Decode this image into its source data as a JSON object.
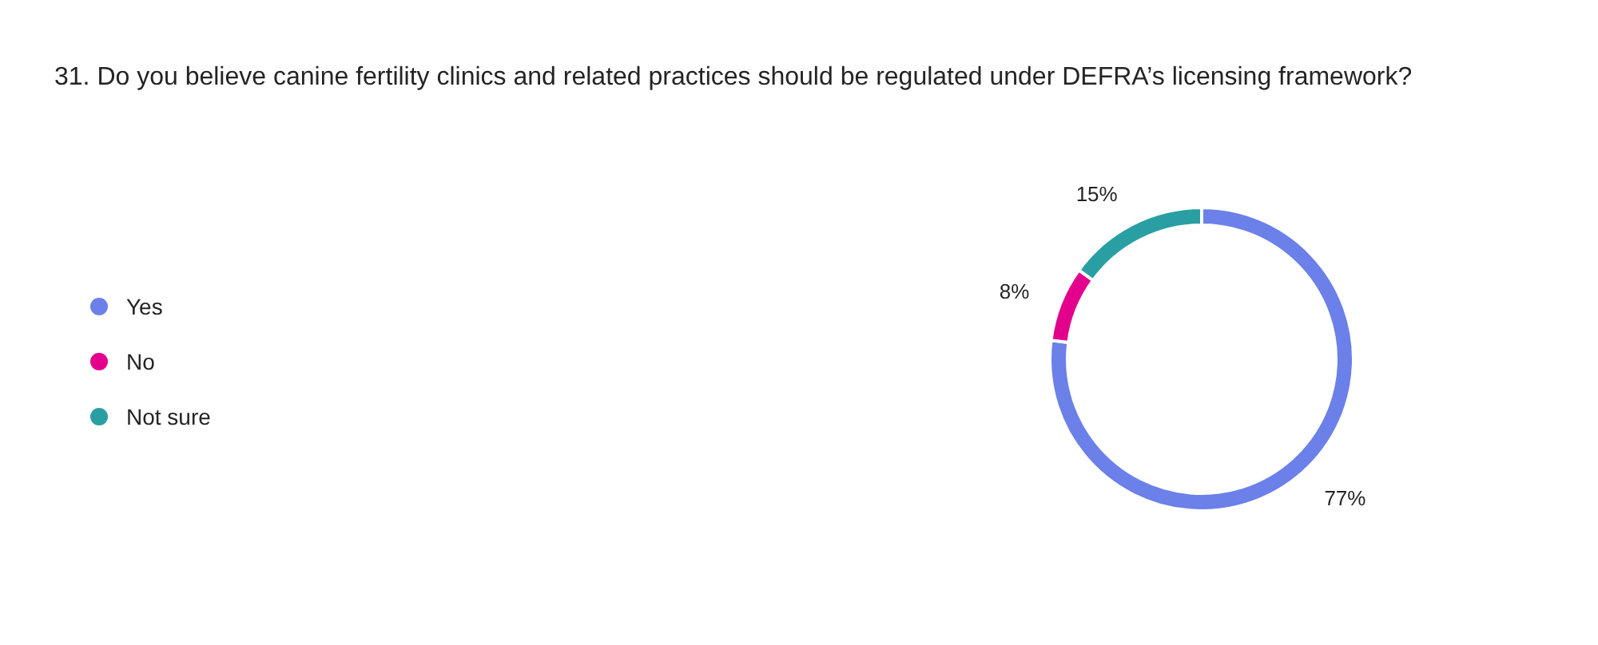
{
  "chart_data": {
    "type": "donut",
    "title": "31. Do you believe canine fertility clinics and related practices should be regulated under DEFRA’s licensing framework?",
    "categories": [
      "Yes",
      "No",
      "Not sure"
    ],
    "values": [
      77,
      8,
      15
    ],
    "colors": [
      "#6b80e8",
      "#e3008c",
      "#2a9fa3"
    ],
    "value_labels": [
      "77%",
      "8%",
      "15%"
    ],
    "legend": "left"
  }
}
